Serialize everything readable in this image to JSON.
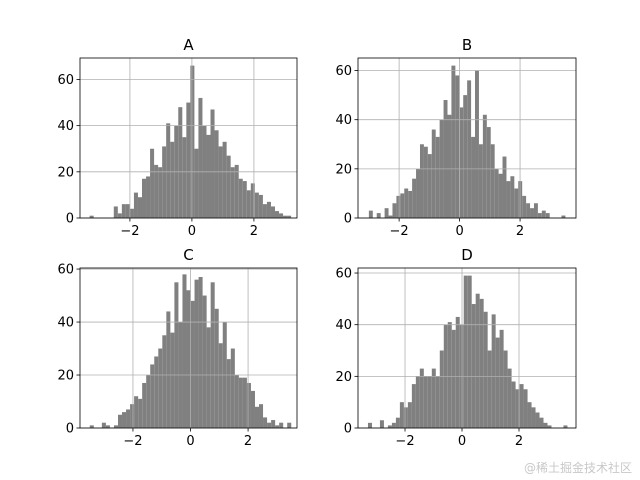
{
  "chart_data": [
    {
      "type": "histogram",
      "title": "A",
      "color": "#808080",
      "grid": true,
      "bins": [
        -3.3,
        -3.17,
        -3.04,
        -2.91,
        -2.78,
        -2.65,
        -2.52,
        -2.39,
        -2.26,
        -2.13,
        -2.0,
        -1.87,
        -1.74,
        -1.61,
        -1.48,
        -1.35,
        -1.22,
        -1.09,
        -0.96,
        -0.83,
        -0.7,
        -0.57,
        -0.44,
        -0.31,
        -0.18,
        -0.05,
        0.08,
        0.21,
        0.34,
        0.47,
        0.6,
        0.73,
        0.86,
        0.99,
        1.12,
        1.25,
        1.38,
        1.51,
        1.64,
        1.77,
        1.9,
        2.03,
        2.16,
        2.29,
        2.42,
        2.55,
        2.68,
        2.81,
        2.94,
        3.07,
        3.2
      ],
      "counts": [
        1,
        0,
        0,
        0,
        0,
        0,
        5,
        2,
        6,
        6,
        4,
        11,
        9,
        17,
        18,
        30,
        23,
        22,
        31,
        41,
        33,
        40,
        48,
        35,
        50,
        66,
        30,
        52,
        40,
        36,
        47,
        38,
        31,
        33,
        27,
        22,
        23,
        17,
        16,
        12,
        15,
        11,
        10,
        6,
        7,
        5,
        3,
        2,
        1,
        1
      ],
      "xlim": [
        -3.61,
        3.39
      ],
      "ylim": [
        0,
        69.3
      ],
      "xticks": [
        {
          "value": -2,
          "label": "−2"
        },
        0,
        2
      ],
      "yticks": [
        0,
        20,
        40,
        60
      ]
    },
    {
      "type": "histogram",
      "title": "B",
      "color": "#808080",
      "grid": true,
      "bins": [
        -3.0,
        -2.87,
        -2.74,
        -2.61,
        -2.48,
        -2.35,
        -2.22,
        -2.09,
        -1.96,
        -1.83,
        -1.7,
        -1.57,
        -1.44,
        -1.31,
        -1.18,
        -1.05,
        -0.92,
        -0.79,
        -0.66,
        -0.53,
        -0.4,
        -0.27,
        -0.14,
        -0.01,
        0.12,
        0.25,
        0.38,
        0.51,
        0.64,
        0.77,
        0.9,
        1.03,
        1.16,
        1.29,
        1.42,
        1.55,
        1.68,
        1.81,
        1.94,
        2.07,
        2.2,
        2.33,
        2.46,
        2.59,
        2.72,
        2.85,
        2.98,
        3.11,
        3.24,
        3.37,
        3.5
      ],
      "counts": [
        3,
        0,
        2,
        0,
        4,
        1,
        6,
        9,
        10,
        12,
        11,
        16,
        20,
        30,
        29,
        26,
        36,
        33,
        40,
        48,
        42,
        62,
        58,
        45,
        50,
        56,
        33,
        60,
        30,
        42,
        37,
        30,
        20,
        18,
        25,
        15,
        17,
        12,
        15,
        9,
        6,
        4,
        6,
        2,
        3,
        2,
        0,
        0,
        0,
        1
      ],
      "xlim": [
        -3.36,
        3.85
      ],
      "ylim": [
        0,
        65.1
      ],
      "xticks": [
        {
          "value": -2,
          "label": "−2"
        },
        0,
        2
      ],
      "yticks": [
        0,
        20,
        40,
        60
      ]
    },
    {
      "type": "histogram",
      "title": "C",
      "color": "#808080",
      "grid": true,
      "bins": [
        -3.5,
        -3.36,
        -3.22,
        -3.08,
        -2.94,
        -2.8,
        -2.66,
        -2.52,
        -2.38,
        -2.24,
        -2.1,
        -1.96,
        -1.82,
        -1.68,
        -1.54,
        -1.4,
        -1.26,
        -1.12,
        -0.98,
        -0.84,
        -0.7,
        -0.56,
        -0.42,
        -0.28,
        -0.14,
        0,
        0.14,
        0.28,
        0.42,
        0.56,
        0.7,
        0.84,
        0.98,
        1.12,
        1.26,
        1.4,
        1.54,
        1.68,
        1.82,
        1.96,
        2.1,
        2.24,
        2.38,
        2.52,
        2.66,
        2.8,
        2.94,
        3.08,
        3.22,
        3.36,
        3.5
      ],
      "counts": [
        1,
        0,
        0,
        2,
        1,
        0,
        1,
        5,
        6,
        7,
        9,
        12,
        11,
        17,
        20,
        24,
        27,
        30,
        35,
        44,
        36,
        55,
        40,
        58,
        52,
        48,
        56,
        57,
        50,
        38,
        55,
        45,
        32,
        40,
        26,
        30,
        20,
        19,
        19,
        17,
        14,
        8,
        9,
        4,
        2,
        3,
        1,
        2,
        0,
        2
      ],
      "xlim": [
        -3.84,
        3.7
      ],
      "ylim": [
        0,
        60.4
      ],
      "xticks": [
        {
          "value": -2,
          "label": "−2"
        },
        0,
        2
      ],
      "yticks": [
        0,
        20,
        40,
        60
      ]
    },
    {
      "type": "histogram",
      "title": "D",
      "color": "#808080",
      "grid": true,
      "bins": [
        -3.3,
        -3.16,
        -3.02,
        -2.88,
        -2.74,
        -2.6,
        -2.46,
        -2.32,
        -2.18,
        -2.04,
        -1.9,
        -1.76,
        -1.62,
        -1.48,
        -1.34,
        -1.2,
        -1.06,
        -0.92,
        -0.78,
        -0.64,
        -0.5,
        -0.36,
        -0.22,
        -0.08,
        0.06,
        0.2,
        0.34,
        0.48,
        0.62,
        0.76,
        0.9,
        1.04,
        1.18,
        1.32,
        1.46,
        1.6,
        1.74,
        1.88,
        2.02,
        2.16,
        2.3,
        2.44,
        2.58,
        2.72,
        2.86,
        3.0,
        3.14,
        3.28,
        3.42,
        3.56,
        3.7
      ],
      "counts": [
        2,
        0,
        0,
        3,
        0,
        1,
        2,
        4,
        10,
        8,
        10,
        17,
        20,
        23,
        20,
        20,
        23,
        20,
        30,
        40,
        41,
        38,
        43,
        40,
        59,
        59,
        48,
        52,
        50,
        45,
        30,
        44,
        35,
        38,
        30,
        23,
        18,
        15,
        17,
        15,
        10,
        8,
        6,
        4,
        2,
        1,
        0,
        0,
        0,
        1
      ],
      "xlim": [
        -3.65,
        4.0
      ],
      "ylim": [
        0,
        61.95
      ],
      "xticks": [
        {
          "value": -2,
          "label": "−2"
        },
        0,
        2
      ],
      "yticks": [
        0,
        20,
        40,
        60
      ]
    }
  ],
  "watermark": "@稀土掘金技术社区"
}
